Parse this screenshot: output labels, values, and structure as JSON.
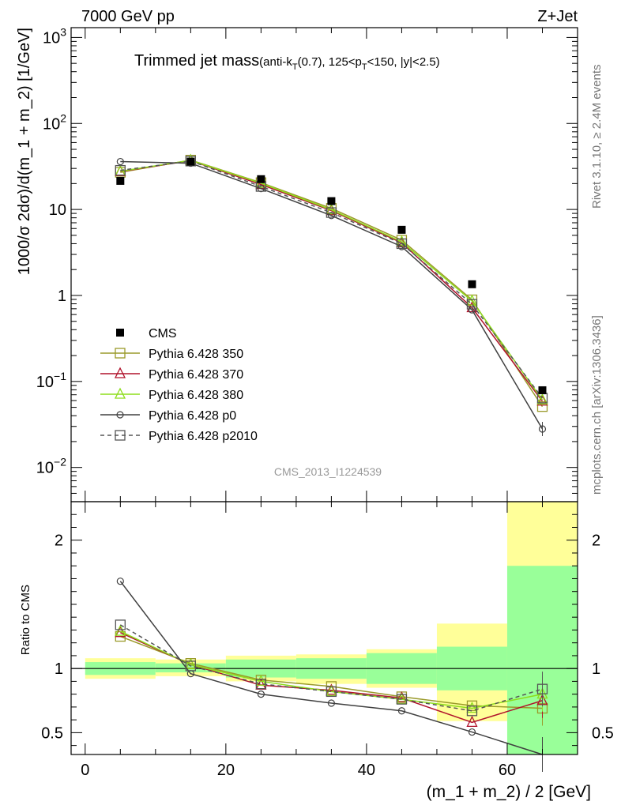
{
  "header": {
    "left": "7000 GeV pp",
    "right": "Z+Jet"
  },
  "title": {
    "main": "Trimmed jet mass",
    "sub_prefix": "(anti-k",
    "sub_kt_sub": "T",
    "sub_mid": "(0.7), 125<p",
    "sub_pt_sub": "T",
    "sub_suffix": "<150, |y|<2.5)"
  },
  "side_labels": {
    "rivet": "Rivet 3.1.10, ≥ 2.4M events",
    "mcplots": "mcplots.cern.ch [arXiv:1306.3436]"
  },
  "watermark": "CMS_2013_I1224539",
  "ylabel_main": "1000/σ 2dσ)/d(m_1 + m_2) [1/GeV]",
  "ylabel_ratio": "Ratio to CMS",
  "xlabel": "(m_1 + m_2) / 2 [GeV]",
  "chart_data": {
    "type": "line",
    "x": [
      5,
      15,
      25,
      35,
      45,
      55,
      65
    ],
    "xlim": [
      -2,
      70
    ],
    "xticks": [
      0,
      20,
      40,
      60
    ],
    "main": {
      "yscale": "log",
      "ylim": [
        0.004,
        1300
      ],
      "yticks": [
        {
          "v": 0.01,
          "base": "10",
          "exp": "−2"
        },
        {
          "v": 0.1,
          "base": "10",
          "exp": "−1"
        },
        {
          "v": 1,
          "base": "1",
          "exp": ""
        },
        {
          "v": 10,
          "base": "10",
          "exp": ""
        },
        {
          "v": 100,
          "base": "10",
          "exp": "2"
        },
        {
          "v": 1000,
          "base": "10",
          "exp": "3"
        }
      ]
    },
    "ratio": {
      "ylim": [
        0.33,
        2.3
      ],
      "yticks": [
        0.5,
        1,
        2
      ],
      "band_edges": [
        0,
        10,
        20,
        30,
        40,
        50,
        60,
        70
      ],
      "band_inner": [
        [
          0.95,
          1.05
        ],
        [
          0.97,
          1.04
        ],
        [
          0.93,
          1.07
        ],
        [
          0.92,
          1.08
        ],
        [
          0.88,
          1.12
        ],
        [
          0.83,
          1.17
        ],
        [
          0.3,
          1.8
        ]
      ],
      "band_outer": [
        [
          0.92,
          1.08
        ],
        [
          0.94,
          1.07
        ],
        [
          0.9,
          1.1
        ],
        [
          0.88,
          1.11
        ],
        [
          0.85,
          1.15
        ],
        [
          0.59,
          1.35
        ],
        [
          0.3,
          2.3
        ]
      ]
    },
    "legend_position": "lower-left",
    "data": {
      "name": "CMS",
      "values": [
        21.5,
        36,
        22.5,
        12.5,
        5.8,
        1.35,
        0.079
      ]
    },
    "series": [
      {
        "name": "Pythia 6.428 350",
        "color": "#9a9a2a",
        "marker": "square-open",
        "dashed": false,
        "values": [
          27,
          37.5,
          20.5,
          10.3,
          4.4,
          0.89,
          0.051
        ],
        "ratio": [
          1.25,
          1.04,
          0.91,
          0.86,
          0.78,
          0.71,
          0.69
        ]
      },
      {
        "name": "Pythia 6.428 370",
        "color": "#b0122b",
        "marker": "triangle-open",
        "dashed": false,
        "values": [
          27.5,
          37,
          19.5,
          9.7,
          4.1,
          0.72,
          0.059
        ],
        "ratio": [
          1.28,
          1.03,
          0.87,
          0.83,
          0.77,
          0.58,
          0.75
        ]
      },
      {
        "name": "Pythia 6.428 380",
        "color": "#8ddd1c",
        "marker": "triangle-open",
        "dashed": false,
        "values": [
          27.8,
          37.2,
          20.2,
          9.9,
          4.2,
          0.86,
          0.061
        ],
        "ratio": [
          1.29,
          1.03,
          0.9,
          0.82,
          0.76,
          0.69,
          0.8
        ]
      },
      {
        "name": "Pythia 6.428 p0",
        "color": "#404040",
        "marker": "circle-open",
        "dashed": false,
        "values": [
          36,
          34.5,
          17.5,
          8.5,
          3.7,
          0.68,
          0.028
        ],
        "ratio": [
          1.68,
          0.96,
          0.8,
          0.73,
          0.67,
          0.505,
          0.33
        ]
      },
      {
        "name": "Pythia 6.428 p2010",
        "color": "#555555",
        "marker": "square-open",
        "dashed": true,
        "values": [
          28.5,
          36.5,
          18.5,
          9.2,
          4.0,
          0.79,
          0.064
        ],
        "ratio": [
          1.34,
          1.02,
          0.88,
          0.82,
          0.76,
          0.67,
          0.84
        ]
      }
    ]
  }
}
